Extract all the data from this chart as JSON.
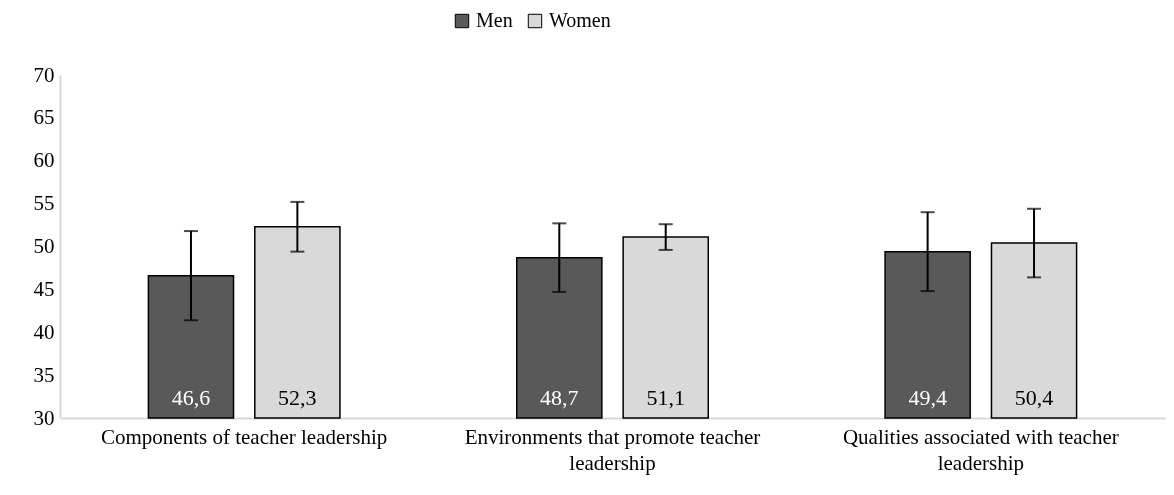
{
  "chart_data": {
    "type": "bar",
    "categories": [
      "Components of teacher leadership",
      "Environments that promote teacher leadership",
      "Qualities associated with teacher leadership"
    ],
    "series": [
      {
        "name": "Men",
        "color": "#595959",
        "values": [
          46.6,
          48.7,
          49.4
        ],
        "errors": [
          5.2,
          4.0,
          4.6
        ],
        "value_labels": [
          "46,6",
          "48,7",
          "49,4"
        ]
      },
      {
        "name": "Women",
        "color": "#d9d9d9",
        "values": [
          52.3,
          51.1,
          50.4
        ],
        "errors": [
          2.9,
          1.5,
          4.0
        ],
        "value_labels": [
          "52,3",
          "51,1",
          "50,4"
        ]
      }
    ],
    "ylim": [
      30,
      70
    ],
    "yticks": [
      30,
      35,
      40,
      45,
      50,
      55,
      60,
      65,
      70
    ],
    "legend": "top",
    "grid": false
  }
}
